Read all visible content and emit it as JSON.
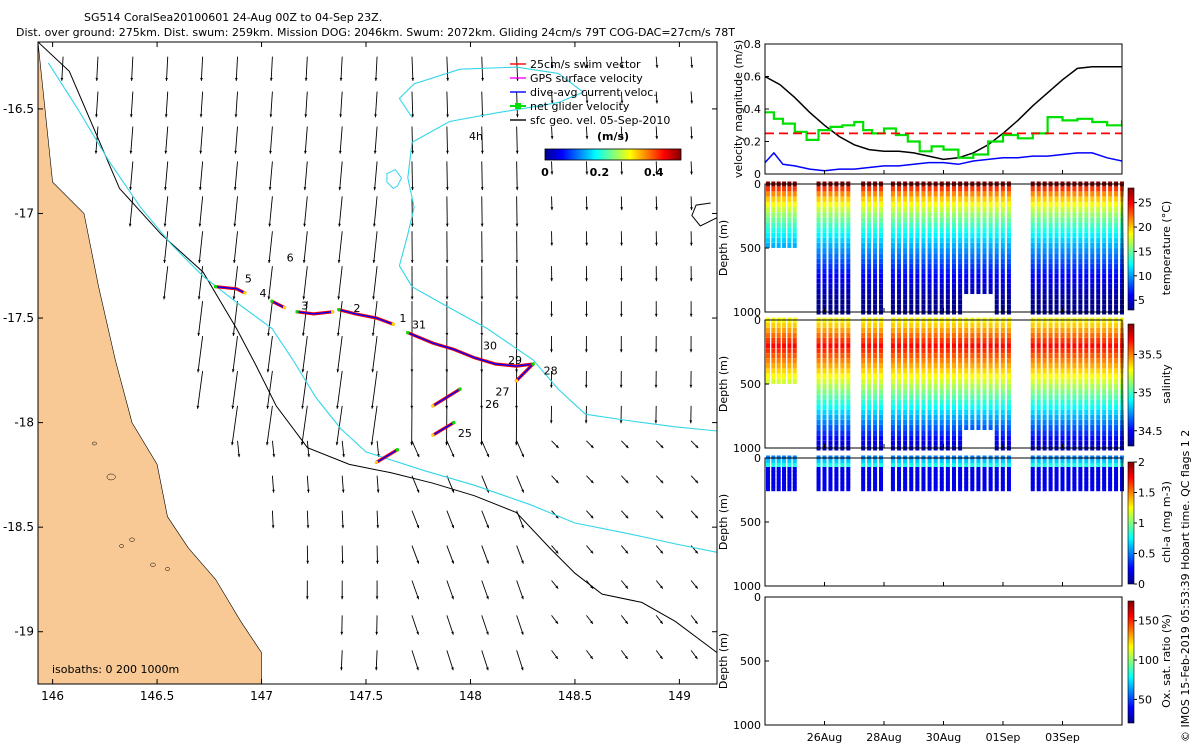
{
  "colors": {
    "land": "#F8C994",
    "isobath200": "#000000",
    "isobath1000": "#33D6E8",
    "swim": "#FF0000",
    "gps": "#FF00FF",
    "dac": "#0000FF",
    "net": "#00E000",
    "geo": "#000000"
  },
  "header": {
    "line1": "SG514 CoralSea20100601 24-Aug 00Z to 04-Sep 23Z.",
    "line2": "Dist. over ground: 275km. Dist. swum: 259km. Mission DOG: 2046km. Swum: 2072km. Gliding 24cm/s 79T COG-DAC=27cm/s 78T"
  },
  "side_credit": "© IMOS 15-Feb-2019 05:53:39 Hobart time. QC flags 1  2",
  "chart_data": [
    {
      "type": "map",
      "name": "glider-track-map",
      "x_range": [
        145.93,
        149.18
      ],
      "y_range": [
        -19.25,
        -16.18
      ],
      "x_ticks": [
        146,
        146.5,
        147,
        147.5,
        148,
        148.5,
        149
      ],
      "x_tick_labels": [
        "146",
        "146.5",
        "147",
        "147.5",
        "148",
        "148.5",
        "149"
      ],
      "y_ticks": [
        -16.5,
        -17,
        -17.5,
        -18,
        -18.5,
        -19
      ],
      "y_tick_labels": [
        "-16.5",
        "-17",
        "-17.5",
        "-18",
        "-18.5",
        "-19"
      ],
      "legend": [
        {
          "label": "25cm/s swim vector",
          "color": "#FF0000",
          "marker": "dash"
        },
        {
          "label": "GPS surface velocity",
          "color": "#FF00FF",
          "marker": "dash"
        },
        {
          "label": "dive-avg current veloc.",
          "color": "#0000FF",
          "marker": "dash"
        },
        {
          "label": "net glider velocity",
          "color": "#00E000",
          "marker": "square"
        },
        {
          "label": "sfc geo. vel. 05-Sep-2010",
          "color": "#000000",
          "marker": "dash"
        }
      ],
      "legend_position": "top-right",
      "arrow_scale_label": "4h",
      "colorbar": {
        "label": "(m/s)",
        "ticks": [
          0,
          0.2,
          0.4
        ],
        "tick_labels": [
          "0",
          "0.2",
          "0.4"
        ],
        "range": [
          0,
          0.5
        ]
      },
      "isobath_label": "isobaths: 0   200  1000m",
      "coast": [
        [
          145.93,
          -16.18
        ],
        [
          146.08,
          -16.32
        ],
        [
          146.2,
          -16.6
        ],
        [
          146.32,
          -16.88
        ],
        [
          146.52,
          -17.1
        ],
        [
          146.72,
          -17.28
        ],
        [
          146.88,
          -17.55
        ],
        [
          146.97,
          -17.72
        ],
        [
          147.07,
          -17.92
        ],
        [
          147.22,
          -18.12
        ],
        [
          147.42,
          -18.2
        ],
        [
          147.62,
          -18.24
        ],
        [
          147.82,
          -18.29
        ],
        [
          148.02,
          -18.35
        ],
        [
          148.22,
          -18.43
        ],
        [
          148.38,
          -18.6
        ],
        [
          148.5,
          -18.72
        ],
        [
          148.63,
          -18.82
        ],
        [
          148.82,
          -18.86
        ],
        [
          148.98,
          -18.95
        ],
        [
          149.18,
          -19.1
        ]
      ],
      "isobath1000_left": [
        [
          145.98,
          -16.28
        ],
        [
          146.12,
          -16.5
        ],
        [
          146.27,
          -16.75
        ],
        [
          146.42,
          -16.97
        ],
        [
          146.57,
          -17.15
        ],
        [
          146.72,
          -17.3
        ],
        [
          146.9,
          -17.44
        ],
        [
          147.05,
          -17.55
        ],
        [
          147.15,
          -17.7
        ],
        [
          147.26,
          -17.88
        ],
        [
          147.38,
          -18.03
        ],
        [
          147.5,
          -18.14
        ],
        [
          147.78,
          -18.23
        ],
        [
          148.02,
          -18.3
        ],
        [
          148.28,
          -18.39
        ],
        [
          148.5,
          -18.48
        ],
        [
          148.75,
          -18.53
        ],
        [
          148.98,
          -18.58
        ],
        [
          149.18,
          -18.62
        ]
      ],
      "isobath1000_right": [
        [
          147.72,
          -16.54
        ],
        [
          147.66,
          -16.45
        ],
        [
          147.73,
          -16.38
        ],
        [
          147.95,
          -16.31
        ],
        [
          148.22,
          -16.3
        ],
        [
          148.42,
          -16.33
        ],
        [
          148.54,
          -16.42
        ],
        [
          148.42,
          -16.47
        ],
        [
          148.12,
          -16.52
        ],
        [
          147.9,
          -16.56
        ],
        [
          147.72,
          -16.66
        ],
        [
          147.7,
          -16.83
        ],
        [
          147.73,
          -16.97
        ],
        [
          147.7,
          -17.1
        ],
        [
          147.66,
          -17.25
        ],
        [
          147.72,
          -17.35
        ],
        [
          147.88,
          -17.44
        ],
        [
          148.08,
          -17.55
        ],
        [
          148.3,
          -17.7
        ],
        [
          148.42,
          -17.84
        ],
        [
          148.55,
          -17.96
        ],
        [
          148.75,
          -17.99
        ],
        [
          148.98,
          -18.02
        ],
        [
          149.18,
          -18.04
        ]
      ],
      "island_ring": [
        [
          147.63,
          -16.88
        ],
        [
          147.6,
          -16.85
        ],
        [
          147.6,
          -16.81
        ],
        [
          147.64,
          -16.79
        ],
        [
          147.67,
          -16.83
        ],
        [
          147.65,
          -16.87
        ]
      ],
      "reef_hook": [
        [
          149.15,
          -16.95
        ],
        [
          149.08,
          -16.96
        ],
        [
          149.06,
          -17.01
        ],
        [
          149.1,
          -17.06
        ],
        [
          149.18,
          -17.02
        ]
      ],
      "track_segments": [
        [
          [
            146.78,
            -17.35
          ],
          [
            146.88,
            -17.36
          ],
          [
            146.92,
            -17.38
          ]
        ],
        [
          [
            147.05,
            -17.42
          ],
          [
            147.11,
            -17.45
          ]
        ],
        [
          [
            147.17,
            -17.47
          ],
          [
            147.25,
            -17.48
          ],
          [
            147.34,
            -17.47
          ]
        ],
        [
          [
            147.37,
            -17.46
          ],
          [
            147.45,
            -17.48
          ],
          [
            147.55,
            -17.5
          ],
          [
            147.63,
            -17.53
          ]
        ],
        [
          [
            147.7,
            -17.57
          ],
          [
            147.82,
            -17.62
          ],
          [
            147.92,
            -17.65
          ],
          [
            148.02,
            -17.69
          ],
          [
            148.12,
            -17.72
          ],
          [
            148.22,
            -17.73
          ],
          [
            148.3,
            -17.72
          ]
        ],
        [
          [
            148.3,
            -17.72
          ],
          [
            148.22,
            -17.8
          ]
        ],
        [
          [
            147.95,
            -17.84
          ],
          [
            147.82,
            -17.92
          ]
        ],
        [
          [
            147.92,
            -18
          ],
          [
            147.82,
            -18.06
          ]
        ],
        [
          [
            147.65,
            -18.13
          ],
          [
            147.55,
            -18.19
          ]
        ]
      ],
      "dive_labels": [
        {
          "text": "5",
          "x": 146.92,
          "y": -17.33
        },
        {
          "text": "6",
          "x": 147.12,
          "y": -17.23
        },
        {
          "text": "4",
          "x": 146.99,
          "y": -17.4
        },
        {
          "text": "3",
          "x": 147.19,
          "y": -17.46
        },
        {
          "text": "2",
          "x": 147.44,
          "y": -17.47
        },
        {
          "text": "1",
          "x": 147.66,
          "y": -17.52
        },
        {
          "text": "31",
          "x": 147.72,
          "y": -17.55
        },
        {
          "text": "30",
          "x": 148.06,
          "y": -17.65
        },
        {
          "text": "29",
          "x": 148.18,
          "y": -17.72
        },
        {
          "text": "28",
          "x": 148.35,
          "y": -17.77
        },
        {
          "text": "27",
          "x": 148.12,
          "y": -17.87
        },
        {
          "text": "26",
          "x": 148.07,
          "y": -17.93
        },
        {
          "text": "25",
          "x": 147.94,
          "y": -18.07
        }
      ]
    },
    {
      "type": "line",
      "name": "velocity-magnitude",
      "ylabel": "velocity magnitude (m/s)",
      "ylim": [
        0,
        0.8
      ],
      "y_ticks": [
        0,
        0.2,
        0.4,
        0.6,
        0.8
      ],
      "y_tick_labels": [
        "0",
        "0.2",
        "0.4",
        "0.6",
        "0.8"
      ],
      "x_range_days": [
        0,
        12
      ],
      "series": [
        {
          "name": "geostrophic velocity",
          "color": "#000000",
          "x": [
            0,
            0.5,
            1,
            1.5,
            2,
            2.5,
            3,
            3.5,
            4,
            4.5,
            5,
            5.5,
            6,
            6.5,
            7,
            7.5,
            8,
            8.5,
            9,
            9.5,
            10,
            10.5,
            11,
            11.5,
            12
          ],
          "values": [
            0.6,
            0.55,
            0.47,
            0.38,
            0.3,
            0.23,
            0.18,
            0.15,
            0.14,
            0.14,
            0.13,
            0.11,
            0.09,
            0.1,
            0.13,
            0.18,
            0.25,
            0.33,
            0.42,
            0.5,
            0.58,
            0.65,
            0.66,
            0.66,
            0.66
          ]
        },
        {
          "name": "net glider velocity",
          "color": "#00E000",
          "x": [
            0,
            0.3,
            0.6,
            1,
            1.4,
            1.8,
            2.2,
            2.6,
            3,
            3.3,
            3.6,
            4,
            4.4,
            4.8,
            5.2,
            5.6,
            6,
            6.5,
            7,
            7.5,
            8,
            8.5,
            9,
            9.5,
            10,
            10.5,
            11,
            11.5,
            12
          ],
          "values": [
            0.38,
            0.34,
            0.31,
            0.26,
            0.21,
            0.27,
            0.29,
            0.3,
            0.32,
            0.27,
            0.25,
            0.28,
            0.24,
            0.2,
            0.14,
            0.17,
            0.15,
            0.1,
            0.12,
            0.2,
            0.24,
            0.22,
            0.25,
            0.35,
            0.33,
            0.34,
            0.32,
            0.3,
            0.33
          ]
        },
        {
          "name": "25cm/s swim vector",
          "color": "#FF0000",
          "dashed": true,
          "x": [
            0,
            12
          ],
          "values": [
            0.25,
            0.25
          ]
        },
        {
          "name": "dive-avg current veloc.",
          "color": "#0000FF",
          "x": [
            0,
            0.3,
            0.6,
            1,
            1.5,
            2,
            2.5,
            3,
            3.5,
            4,
            4.5,
            5,
            5.5,
            6,
            6.5,
            7,
            7.5,
            8,
            8.5,
            9,
            9.5,
            10,
            10.5,
            11,
            11.5,
            12
          ],
          "values": [
            0.07,
            0.13,
            0.06,
            0.05,
            0.03,
            0.02,
            0.03,
            0.03,
            0.04,
            0.05,
            0.05,
            0.06,
            0.07,
            0.07,
            0.06,
            0.08,
            0.09,
            0.1,
            0.1,
            0.11,
            0.11,
            0.12,
            0.13,
            0.13,
            0.1,
            0.08
          ]
        }
      ]
    },
    {
      "type": "scatter",
      "name": "temperature-section",
      "ylabel": "Depth (m)",
      "ylim": [
        0,
        1000
      ],
      "y_ticks": [
        0,
        500,
        1000
      ],
      "y_tick_labels": [
        "0",
        "500",
        "1000"
      ],
      "colorbar": {
        "label": "temperature (°C)",
        "range": [
          3,
          28
        ],
        "ticks": [
          5,
          10,
          15,
          20,
          25
        ],
        "tick_labels": [
          "5",
          "10",
          "15",
          "20",
          "25"
        ]
      }
    },
    {
      "type": "scatter",
      "name": "salinity-section",
      "ylabel": "Depth (m)",
      "ylim": [
        0,
        1000
      ],
      "y_ticks": [
        0,
        500,
        1000
      ],
      "y_tick_labels": [
        "0",
        "500",
        "1000"
      ],
      "colorbar": {
        "label": "salinity",
        "range": [
          34.3,
          35.9
        ],
        "ticks": [
          34.5,
          35,
          35.5
        ],
        "tick_labels": [
          "34.5",
          "35",
          "35.5"
        ]
      }
    },
    {
      "type": "scatter",
      "name": "chlorophyll-section",
      "ylabel": "Depth (m)",
      "ylim": [
        0,
        1000
      ],
      "y_ticks": [
        0,
        500,
        1000
      ],
      "y_tick_labels": [
        "0",
        "500",
        "1000"
      ],
      "colorbar": {
        "label": "chl-a (mg m-3)",
        "range": [
          0,
          2
        ],
        "ticks": [
          0,
          0.5,
          1,
          1.5,
          2
        ],
        "tick_labels": [
          "0",
          "0.5",
          "1",
          "1.5",
          "2"
        ]
      }
    },
    {
      "type": "scatter",
      "name": "oxygen-section",
      "ylabel": "Depth (m)",
      "ylim": [
        0,
        1000
      ],
      "y_ticks": [
        0,
        500,
        1000
      ],
      "y_tick_labels": [
        "0",
        "500",
        "1000"
      ],
      "x_ticks_days": [
        2,
        4,
        6,
        8,
        10
      ],
      "x_tick_labels": [
        "26Aug",
        "28Aug",
        "30Aug",
        "01Sep",
        "03Sep"
      ],
      "colorbar": {
        "label": "Ox. sat. ratio (%)",
        "range": [
          20,
          175
        ],
        "ticks": [
          50,
          100,
          150
        ],
        "tick_labels": [
          "50",
          "100",
          "150"
        ]
      }
    }
  ]
}
